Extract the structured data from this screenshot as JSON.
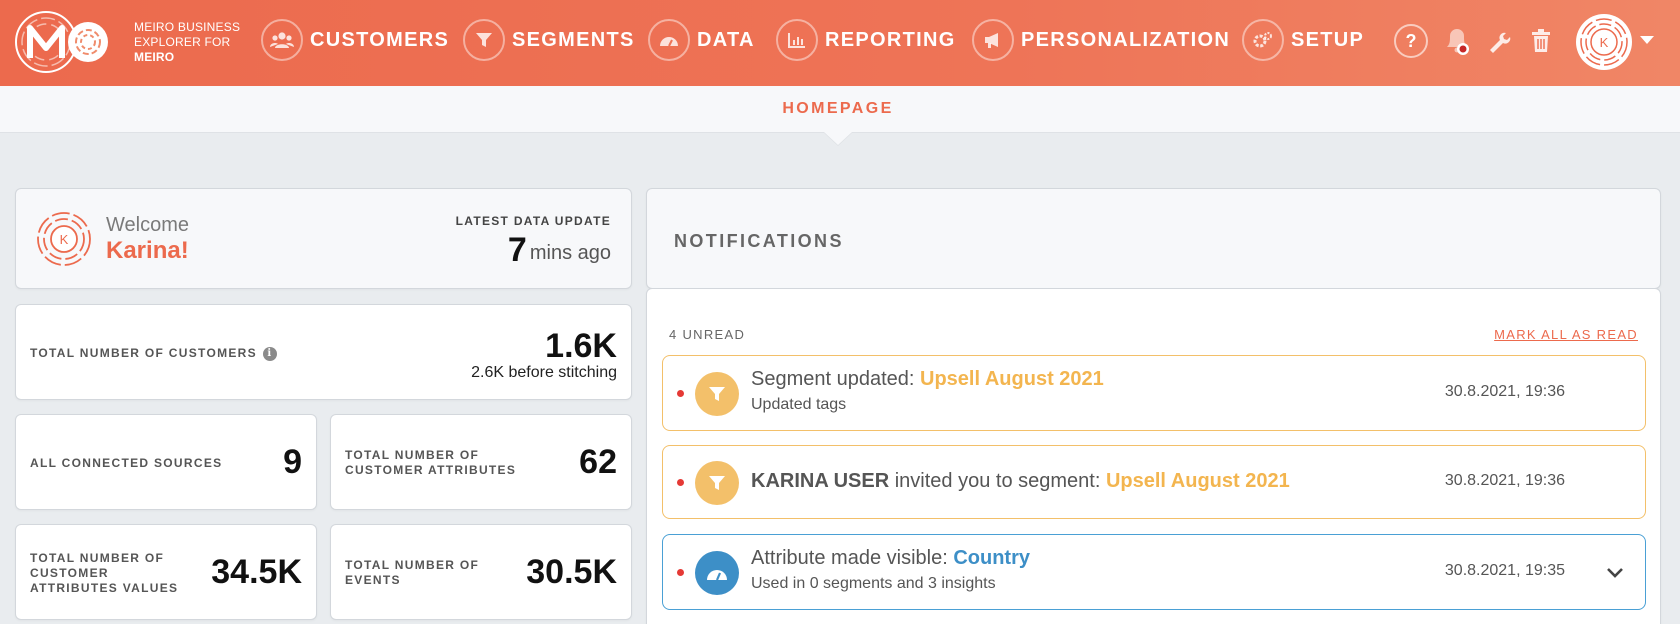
{
  "brand": {
    "line1": "MEIRO BUSINESS",
    "line2": "EXPLORER FOR",
    "line3": "MEIRO"
  },
  "nav": [
    {
      "label": "CUSTOMERS",
      "icon": "users-icon"
    },
    {
      "label": "SEGMENTS",
      "icon": "funnel-icon"
    },
    {
      "label": "DATA",
      "icon": "gauge-icon"
    },
    {
      "label": "REPORTING",
      "icon": "bar-chart-icon"
    },
    {
      "label": "PERSONALIZATION",
      "icon": "megaphone-icon"
    },
    {
      "label": "SETUP",
      "icon": "gears-icon"
    }
  ],
  "header_icons": {
    "help": "?",
    "user_initial": "K"
  },
  "page": {
    "title": "HOMEPAGE"
  },
  "welcome": {
    "greeting": "Welcome",
    "name": "Karina!",
    "avatar_initial": "K",
    "latest_update_label": "LATEST DATA UPDATE",
    "latest_update_value": "7",
    "latest_update_suffix": "mins ago"
  },
  "stats": {
    "customers_label": "TOTAL NUMBER OF CUSTOMERS",
    "customers_value": "1.6K",
    "customers_sub": "2.6K before stitching",
    "sources_label": "ALL CONNECTED SOURCES",
    "sources_value": "9",
    "attributes_label_1": "TOTAL NUMBER OF",
    "attributes_label_2": "CUSTOMER ATTRIBUTES",
    "attributes_value": "62",
    "attr_values_label_1": "TOTAL NUMBER OF",
    "attr_values_label_2": "CUSTOMER",
    "attr_values_label_3": "ATTRIBUTES VALUES",
    "attr_values_value": "34.5K",
    "events_label_1": "TOTAL NUMBER OF",
    "events_label_2": "EVENTS",
    "events_value": "30.5K"
  },
  "notifications": {
    "title": "NOTIFICATIONS",
    "unread": "4 UNREAD",
    "mark_all": "MARK ALL AS READ",
    "items": [
      {
        "prefix": "Segment updated: ",
        "highlight": "Upsell August 2021",
        "detail": "Updated tags",
        "date": "30.8.2021, 19:36",
        "color": "#f3c06a"
      },
      {
        "actor": "KARINA USER",
        "prefix": " invited you to segment: ",
        "highlight": "Upsell August 2021",
        "date": "30.8.2021, 19:36",
        "color": "#f3c06a"
      },
      {
        "prefix": "Attribute made visible: ",
        "highlight": "Country",
        "detail": "Used in 0 segments and 3 insights",
        "date": "30.8.2021, 19:35",
        "color": "#3d8fc7"
      }
    ]
  },
  "colors": {
    "brand": "#ec6a4d",
    "segment_accent": "#f3c06a",
    "data_accent": "#3d8fc7",
    "unread_dot": "#e53935"
  }
}
